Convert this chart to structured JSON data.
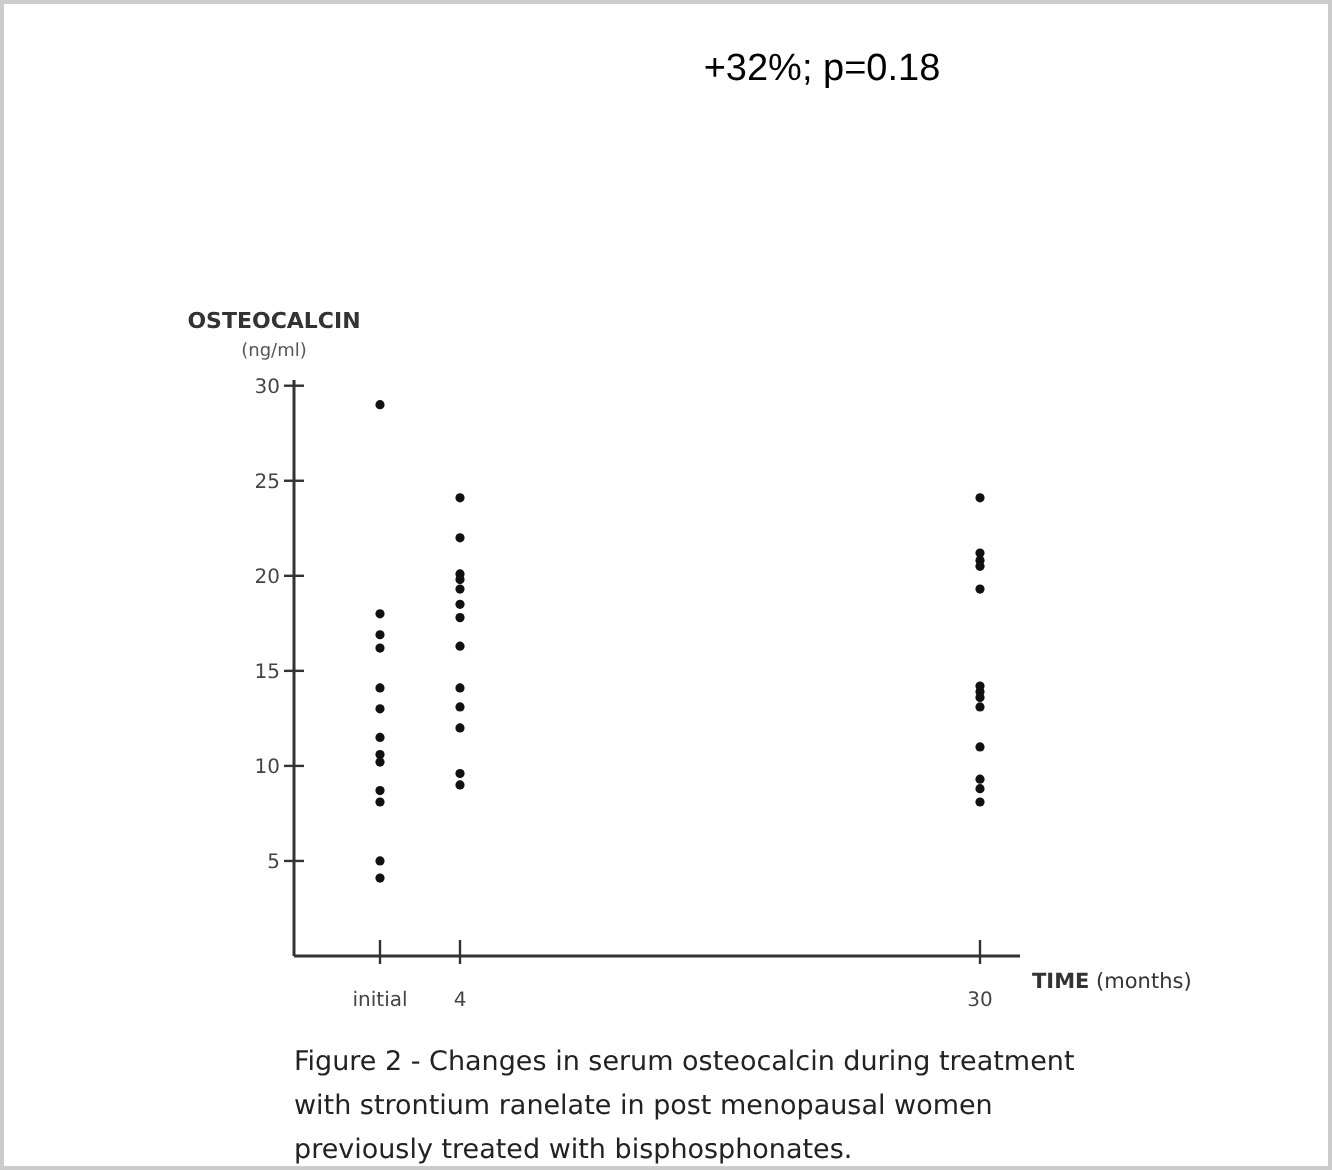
{
  "chart_data": {
    "type": "scatter",
    "ylabel": "OSTEOCALCIN (ng/ml)",
    "xlabel": "TIME (months)",
    "annotations": [
      "+32%; p=0.18",
      "Figure 2 - Changes in serum osteocalcin during treatment with strontium ranelate in post menopausal women previously treated with bisphosphonates."
    ],
    "series": [
      {
        "color": "#111111",
        "x": [
          0,
          0,
          0,
          0,
          0,
          0,
          0,
          0,
          0,
          0,
          0,
          0,
          0,
          4,
          4,
          4,
          4,
          4,
          4,
          4,
          4,
          4,
          4,
          4,
          4,
          4,
          30,
          30,
          30,
          30,
          30,
          30,
          30,
          30,
          30,
          30,
          30,
          30,
          30
        ],
        "values": [
          29,
          18,
          16.9,
          16.2,
          14.1,
          13,
          11.5,
          10.6,
          10.2,
          8.7,
          8.1,
          5,
          4.1,
          24.1,
          22,
          20.1,
          19.8,
          19.3,
          18.5,
          17.8,
          16.3,
          14.1,
          13.1,
          12,
          9.6,
          9,
          24.1,
          21.2,
          20.8,
          20.5,
          19.3,
          14.2,
          13.9,
          13.6,
          13.1,
          11,
          9.3,
          8.8,
          8.1
        ]
      }
    ],
    "marker": "circle",
    "xlim": [
      -4.3,
      32
    ],
    "xticks": [
      {
        "value": 0,
        "label": "initial"
      },
      4,
      30
    ],
    "ylim": [
      0,
      30.3
    ],
    "yticks": [
      5,
      10,
      15,
      20,
      25,
      30
    ]
  }
}
